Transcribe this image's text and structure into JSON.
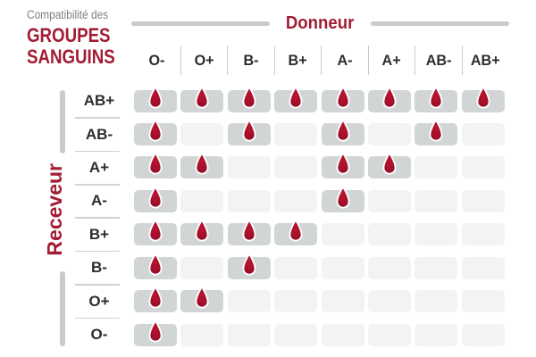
{
  "header": {
    "small": "Compatibilité des",
    "main1": "GROUPES",
    "main2": "SANGUINS"
  },
  "axes": {
    "donor": "Donneur",
    "receiver": "Receveur"
  },
  "icons": {
    "cell_marker": "blood-drop-icon"
  },
  "colors": {
    "accent_red": "#a31c33",
    "drop_center": "#bb1430",
    "drop_edge": "#8c0c23",
    "cell_filled": "#d2d5d6",
    "cell_empty": "#f2f3f3",
    "rail_gray": "#c9cbcd",
    "text_dark": "#2b2d2e",
    "title_gray": "#7f8285"
  },
  "chart_data": {
    "type": "heatmap",
    "title": "Compatibilité des GROUPES SANGUINS",
    "x_axis_label": "Donneur",
    "y_axis_label": "Receveur",
    "columns": [
      "O-",
      "O+",
      "B-",
      "B+",
      "A-",
      "A+",
      "AB-",
      "AB+"
    ],
    "rows": [
      "AB+",
      "AB-",
      "A+",
      "A-",
      "B+",
      "B-",
      "O+",
      "O-"
    ],
    "matrix": [
      [
        1,
        1,
        1,
        1,
        1,
        1,
        1,
        1
      ],
      [
        1,
        0,
        1,
        0,
        1,
        0,
        1,
        0
      ],
      [
        1,
        1,
        0,
        0,
        1,
        1,
        0,
        0
      ],
      [
        1,
        0,
        0,
        0,
        1,
        0,
        0,
        0
      ],
      [
        1,
        1,
        1,
        1,
        0,
        0,
        0,
        0
      ],
      [
        1,
        0,
        1,
        0,
        0,
        0,
        0,
        0
      ],
      [
        1,
        1,
        0,
        0,
        0,
        0,
        0,
        0
      ],
      [
        1,
        0,
        0,
        0,
        0,
        0,
        0,
        0
      ]
    ],
    "marker": "blood-drop",
    "legend_position": "none",
    "grid": false
  }
}
